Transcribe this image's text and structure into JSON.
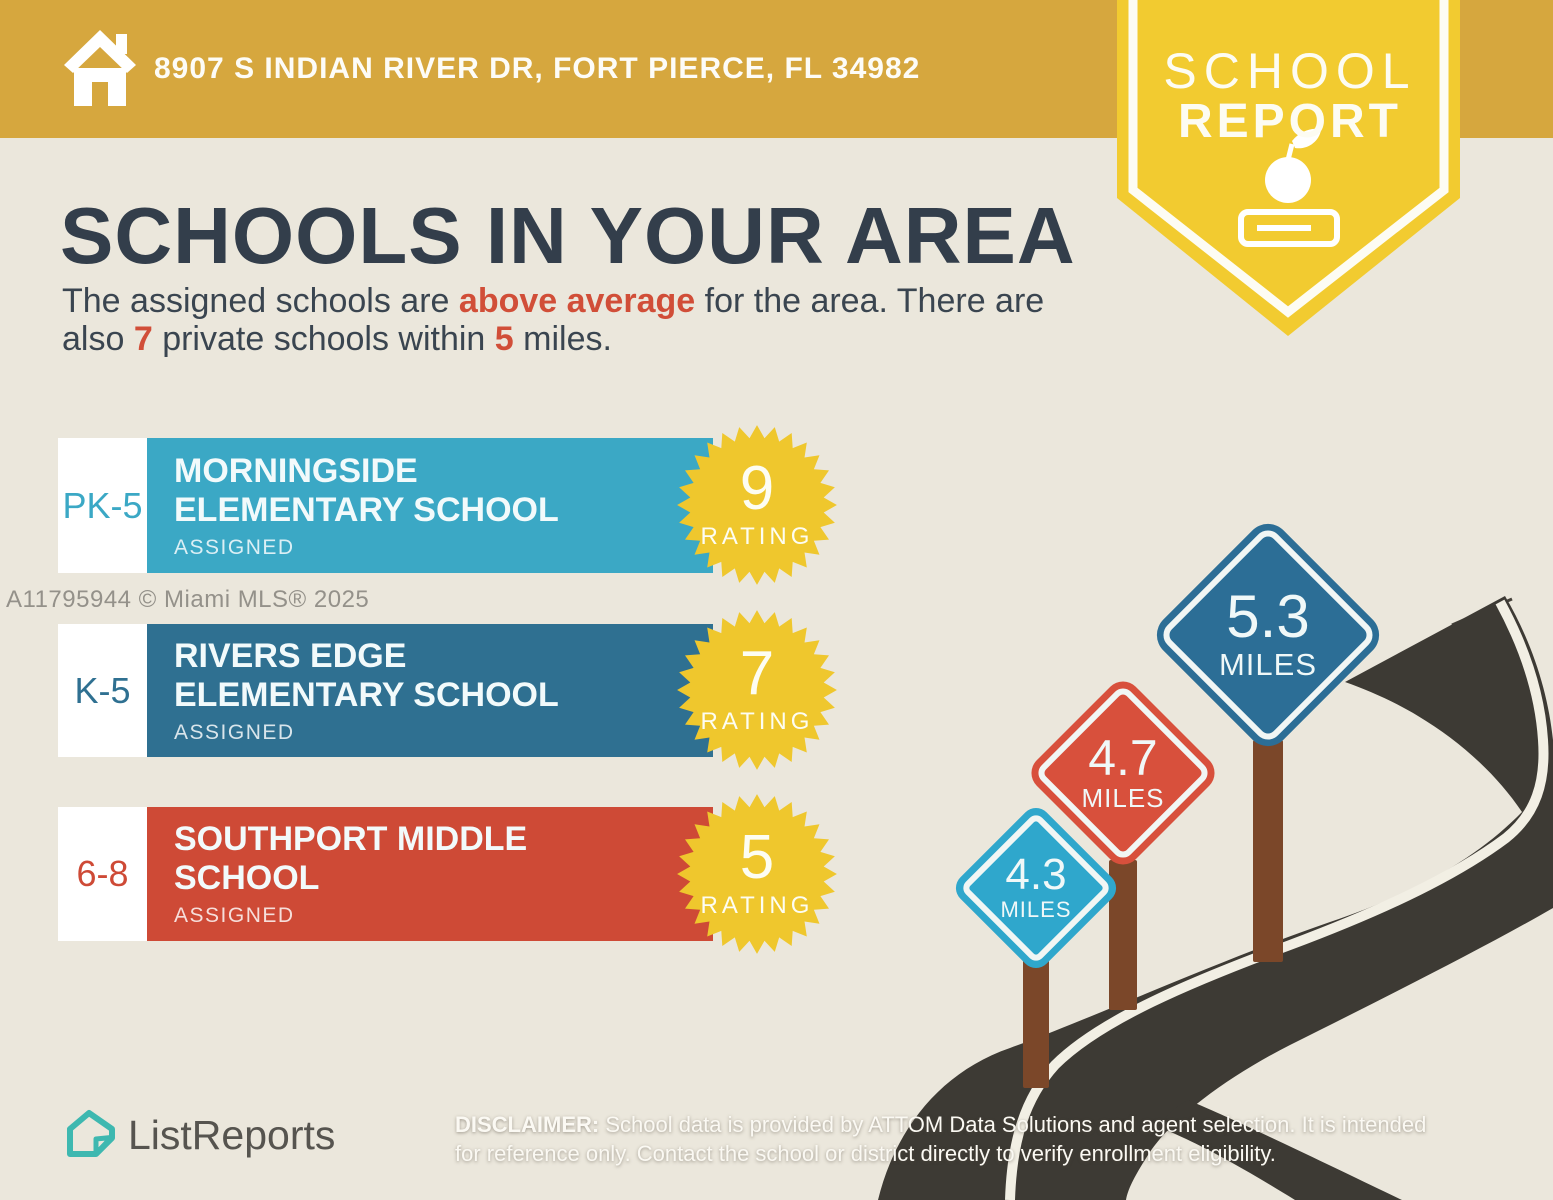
{
  "header": {
    "address": "8907 S INDIAN RIVER DR, FORT PIERCE, FL 34982",
    "icon": "home-icon"
  },
  "badge": {
    "line1": "SCHOOL",
    "line2": "REPORT",
    "icons": [
      "apple-icon",
      "book-icon"
    ]
  },
  "title": "SCHOOLS IN YOUR AREA",
  "subtitle_segments": [
    {
      "text": "The assigned schools are ",
      "style": "normal"
    },
    {
      "text": "above average",
      "style": "red-bold"
    },
    {
      "text": " for the area. There are also ",
      "style": "normal"
    },
    {
      "text": "7",
      "style": "red-bold"
    },
    {
      "text": " private schools within ",
      "style": "normal"
    },
    {
      "text": "5",
      "style": "red-bold"
    },
    {
      "text": " miles.",
      "style": "normal"
    }
  ],
  "watermark": "A11795944 © Miami MLS® 2025",
  "schools": [
    {
      "grades": "PK-5",
      "name": "MORNINGSIDE ELEMENTARY SCHOOL",
      "status": "ASSIGNED",
      "rating": "9",
      "rating_label": "RATING",
      "accent": "#3BA8C5"
    },
    {
      "grades": "K-5",
      "name": "RIVERS EDGE ELEMENTARY SCHOOL",
      "status": "ASSIGNED",
      "rating": "7",
      "rating_label": "RATING",
      "accent": "#2F7091"
    },
    {
      "grades": "6-8",
      "name": "SOUTHPORT MIDDLE SCHOOL",
      "status": "ASSIGNED",
      "rating": "5",
      "rating_label": "RATING",
      "accent": "#CE4A36"
    }
  ],
  "signs": [
    {
      "value": "4.3",
      "label": "MILES",
      "color": "#2FA7CC"
    },
    {
      "value": "4.7",
      "label": "MILES",
      "color": "#D8503C"
    },
    {
      "value": "5.3",
      "label": "MILES",
      "color": "#2C6E96"
    }
  ],
  "footer": {
    "brand": "ListReports",
    "brand_icon": "listreports-house-icon",
    "disclaimer_label": "DISCLAIMER:",
    "disclaimer_line1_rest": " School data is provided by ATTOM Data Solutions and agent selection. It is intended",
    "disclaimer_line2": "for reference only. Contact the school or district directly to verify enrollment eligibility."
  },
  "colors": {
    "background": "#EBE7DC",
    "gold_bar": "#D6A73E",
    "badge_yellow": "#F2CB30",
    "badge_outline": "#FDFCF3",
    "heading_navy": "#333E4B",
    "body_text": "#3A4550",
    "red_accent": "#D14E38",
    "starburst_yellow": "#EFC72D",
    "road": "#3D3A34",
    "road_line": "#F2EFE4",
    "horizon_line": "#46423B",
    "post_brown": "#7B4729",
    "brand_teal": "#3EB8B0",
    "watermark_gray": "#94918A",
    "white": "#FFFFFF"
  }
}
